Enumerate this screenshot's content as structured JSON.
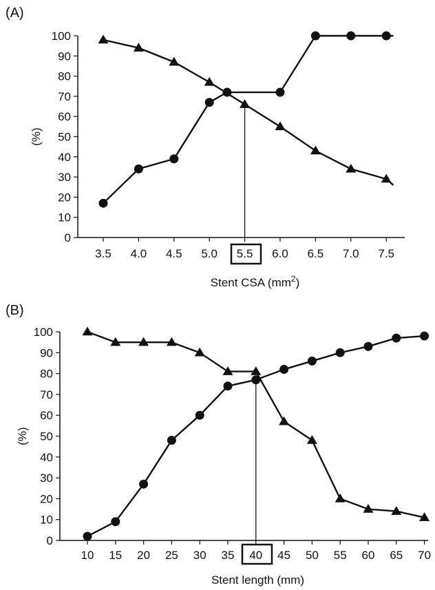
{
  "panels": [
    {
      "label": "(A)"
    },
    {
      "label": "(B)"
    }
  ],
  "chart_data": [
    {
      "type": "line",
      "ylabel": "(%)",
      "xlabel": "Stent CSA (mm",
      "xlabel_sup": "2",
      "xlabel_tail": ")",
      "ylim": [
        0,
        100
      ],
      "yticks": [
        0,
        10,
        20,
        30,
        40,
        50,
        60,
        70,
        80,
        90,
        100
      ],
      "xticks": [
        "3.5",
        "4.0",
        "4.5",
        "5.0",
        "5.5",
        "6.0",
        "6.5",
        "7.0",
        "7.5"
      ],
      "highlight_tick": "5.5",
      "grid": false,
      "series": [
        {
          "marker": "triangle",
          "x": [
            3.5,
            4.0,
            4.5,
            5.0,
            5.5,
            6.0,
            6.5,
            7.0,
            7.5,
            7.6
          ],
          "values": [
            98,
            94,
            87,
            77,
            66,
            55,
            43,
            34,
            29,
            26
          ],
          "marker_count": 9
        },
        {
          "marker": "circle",
          "x": [
            3.5,
            4.0,
            4.5,
            5.0,
            5.25,
            5.5,
            6.0,
            6.5,
            7.0,
            7.5,
            7.6
          ],
          "values": [
            17,
            34,
            39,
            67,
            72,
            72,
            72,
            100,
            100,
            100,
            100
          ],
          "marker_idx": [
            0,
            1,
            2,
            3,
            4,
            6,
            7,
            8,
            9
          ]
        }
      ],
      "vline_x": 5.5,
      "vline_top": 66
    },
    {
      "type": "line",
      "ylabel": "(%)",
      "xlabel": "Stent length (mm)",
      "xlabel_sup": "",
      "xlabel_tail": "",
      "ylim": [
        0,
        100
      ],
      "yticks": [
        0,
        10,
        20,
        30,
        40,
        50,
        60,
        70,
        80,
        90,
        100
      ],
      "xticks": [
        "10",
        "15",
        "20",
        "25",
        "30",
        "35",
        "40",
        "45",
        "50",
        "55",
        "60",
        "65",
        "70"
      ],
      "highlight_tick": "40",
      "grid": false,
      "series": [
        {
          "marker": "triangle",
          "x": [
            10,
            15,
            20,
            25,
            30,
            35,
            40,
            45,
            50,
            55,
            60,
            65,
            70
          ],
          "values": [
            100,
            95,
            95,
            95,
            90,
            81,
            81,
            57,
            48,
            20,
            15,
            14,
            11
          ]
        },
        {
          "marker": "circle",
          "x": [
            10,
            15,
            20,
            25,
            30,
            35,
            40,
            45,
            50,
            55,
            60,
            65,
            70
          ],
          "values": [
            2,
            9,
            27,
            48,
            60,
            74,
            77,
            82,
            86,
            90,
            93,
            97,
            98
          ]
        }
      ],
      "vline_x": 40,
      "vline_top": 79
    }
  ]
}
